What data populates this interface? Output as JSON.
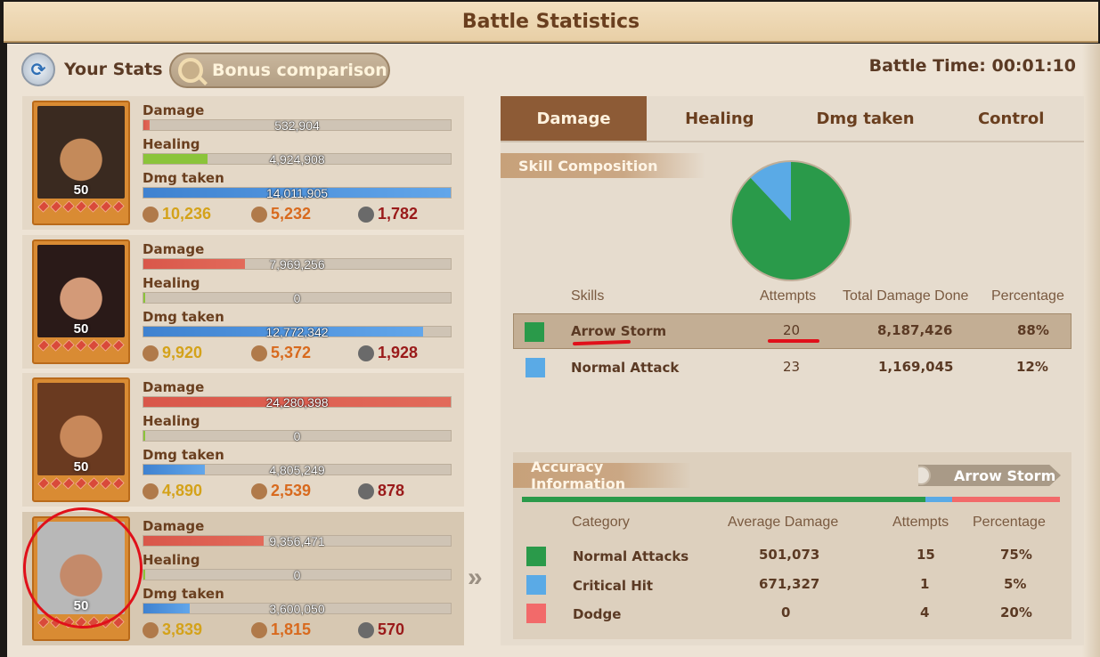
{
  "window": {
    "title": "Battle Statistics"
  },
  "header": {
    "your_stats": "Your Stats",
    "bonus_comparison": "Bonus comparison",
    "battle_time": "Battle Time: 00:01:10"
  },
  "commanders": [
    {
      "level": "50",
      "damage": "532,904",
      "damage_frac": 0.02,
      "healing": "4,924,908",
      "healing_frac": 0.21,
      "dmg_taken": "14,011,905",
      "dmg_taken_frac": 1.0,
      "heal_count": "10,236",
      "wound_count": "5,232",
      "dead_count": "1,782"
    },
    {
      "level": "50",
      "damage": "7,969,256",
      "damage_frac": 0.33,
      "healing": "0",
      "healing_frac": 0.0,
      "dmg_taken": "12,772,342",
      "dmg_taken_frac": 0.91,
      "heal_count": "9,920",
      "wound_count": "5,372",
      "dead_count": "1,928"
    },
    {
      "level": "50",
      "damage": "24,280,398",
      "damage_frac": 1.0,
      "healing": "0",
      "healing_frac": 0.0,
      "dmg_taken": "4,805,249",
      "dmg_taken_frac": 0.2,
      "heal_count": "4,890",
      "wound_count": "2,539",
      "dead_count": "878"
    },
    {
      "level": "50",
      "damage": "9,356,471",
      "damage_frac": 0.39,
      "healing": "0",
      "healing_frac": 0.0,
      "dmg_taken": "3,600,050",
      "dmg_taken_frac": 0.15,
      "heal_count": "3,839",
      "wound_count": "1,815",
      "dead_count": "570"
    }
  ],
  "labels": {
    "damage": "Damage",
    "healing": "Healing",
    "dmg_taken": "Dmg taken"
  },
  "tabs": [
    {
      "label": "Damage"
    },
    {
      "label": "Healing"
    },
    {
      "label": "Dmg taken"
    },
    {
      "label": "Control"
    }
  ],
  "skill_composition": {
    "title": "Skill Composition",
    "headers": {
      "skills": "Skills",
      "attempts": "Attempts",
      "total": "Total Damage Done",
      "percentage": "Percentage"
    },
    "rows": [
      {
        "name": "Arrow Storm",
        "attempts": "20",
        "total": "8,187,426",
        "percentage": "88%",
        "color": "#2a9a4a",
        "share": 0.88
      },
      {
        "name": "Normal Attack",
        "attempts": "23",
        "total": "1,169,045",
        "percentage": "12%",
        "color": "#5aaae6",
        "share": 0.12
      }
    ]
  },
  "accuracy": {
    "title": "Accuracy Information",
    "skill": "Arrow Storm",
    "headers": {
      "category": "Category",
      "avg": "Average Damage",
      "attempts": "Attempts",
      "percentage": "Percentage"
    },
    "rows": [
      {
        "name": "Normal Attacks",
        "avg": "501,073",
        "attempts": "15",
        "percentage": "75%",
        "color": "#2a9a4a",
        "share": 0.75
      },
      {
        "name": "Critical Hit",
        "avg": "671,327",
        "attempts": "1",
        "percentage": "5%",
        "color": "#5aaae6",
        "share": 0.05
      },
      {
        "name": "Dodge",
        "avg": "0",
        "attempts": "4",
        "percentage": "20%",
        "color": "#f26a6a",
        "share": 0.2
      }
    ]
  },
  "colors": {
    "damage": "#d9574a",
    "healing": "#8bc43a",
    "dmg_taken": "#4a8fd6",
    "heal_text": "#d4a21a",
    "wound_text": "#d86a1e",
    "dead_text": "#9a1a1a"
  }
}
